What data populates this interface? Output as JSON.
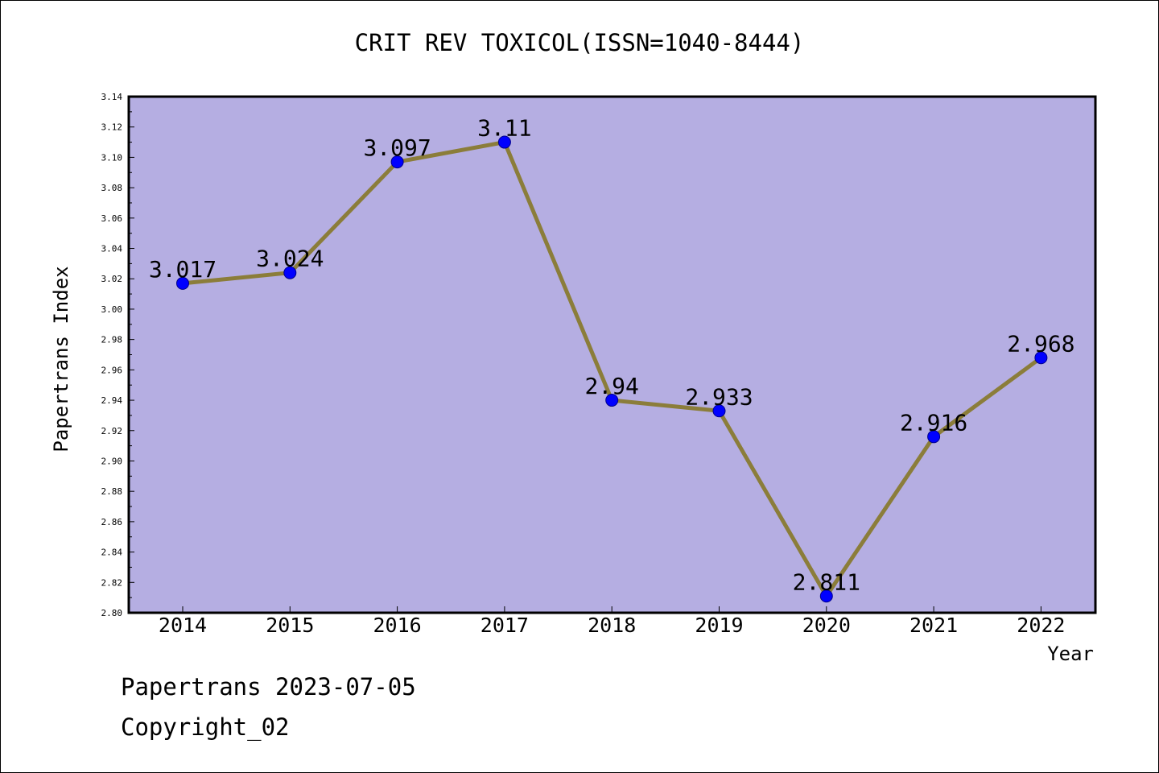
{
  "chart_data": {
    "type": "line",
    "title": "CRIT REV TOXICOL(ISSN=1040-8444)",
    "xlabel": "Year",
    "ylabel": "Papertrans Index",
    "x": [
      "2014",
      "2015",
      "2016",
      "2017",
      "2018",
      "2019",
      "2020",
      "2021",
      "2022"
    ],
    "series": [
      {
        "values": [
          3.017,
          3.024,
          3.097,
          3.11,
          2.94,
          2.933,
          2.811,
          2.916,
          2.968
        ],
        "labels": [
          "3.017",
          "3.024",
          "3.097",
          "3.11",
          "2.94",
          "2.933",
          "2.811",
          "2.916",
          "2.968"
        ]
      }
    ],
    "ylim": [
      2.8,
      3.14
    ],
    "yticks": [
      "2.80",
      "2.82",
      "2.84",
      "2.86",
      "2.88",
      "2.90",
      "2.92",
      "2.94",
      "2.96",
      "2.98",
      "3.00",
      "3.02",
      "3.04",
      "3.06",
      "3.08",
      "3.10",
      "3.12",
      "3.14"
    ],
    "grid": false,
    "colors": {
      "plot_background": "#b5aee2",
      "line": "#8b7d3a",
      "marker": "#0000ff"
    }
  },
  "footer": {
    "line1": "Papertrans 2023-07-05",
    "line2": "Copyright_02"
  }
}
